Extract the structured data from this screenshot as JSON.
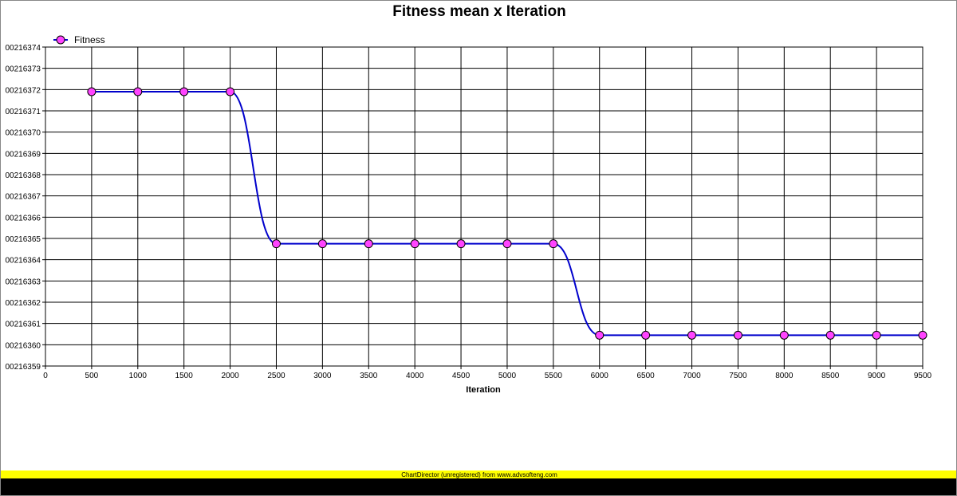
{
  "chart_data": {
    "type": "line",
    "title": "Fitness mean x Iteration",
    "xlabel": "Iteration",
    "ylabel": "",
    "legend_position": "top-left",
    "grid": true,
    "x_ticks": [
      "0",
      "500",
      "1000",
      "1500",
      "2000",
      "2500",
      "3000",
      "3500",
      "4000",
      "4500",
      "5000",
      "5500",
      "6000",
      "6500",
      "7000",
      "7500",
      "8000",
      "8500",
      "9000",
      "9500"
    ],
    "y_ticks": [
      "0.00216359",
      "0.00216360",
      "0.00216361",
      "0.00216362",
      "0.00216363",
      "0.00216364",
      "0.00216365",
      "0.00216366",
      "0.00216367",
      "0.00216368",
      "0.00216369",
      "0.00216370",
      "0.00216371",
      "0.00216372",
      "0.00216373",
      "0.00216374"
    ],
    "y_tick_labels_visible": [
      "00216359",
      "00216360",
      "00216361",
      "00216362",
      "00216363",
      "00216364",
      "00216365",
      "00216366",
      "00216367",
      "00216368",
      "00216369",
      "00216370",
      "00216371",
      "00216372",
      "00216373",
      "00216374"
    ],
    "xlim": [
      0,
      9500
    ],
    "ylim": [
      0.00216359,
      0.00216374
    ],
    "series": [
      {
        "name": "Fitness",
        "line_color": "#0000cc",
        "marker_color": "#ff44ff",
        "x": [
          500,
          1000,
          1500,
          2000,
          2500,
          3000,
          3500,
          4000,
          4500,
          5000,
          5500,
          6000,
          6500,
          7000,
          7500,
          8000,
          8500,
          9000,
          9500
        ],
        "y": [
          0.002163719,
          0.002163719,
          0.002163719,
          0.002163719,
          0.0021636475,
          0.0021636475,
          0.0021636475,
          0.0021636475,
          0.0021636475,
          0.0021636475,
          0.0021636475,
          0.0021636045,
          0.0021636045,
          0.0021636045,
          0.0021636045,
          0.0021636045,
          0.0021636045,
          0.0021636045,
          0.0021636045
        ]
      }
    ]
  },
  "footer": {
    "text": "ChartDirector (unregistered) from www.advsofteng.com",
    "bar_color": "#ffff00"
  }
}
